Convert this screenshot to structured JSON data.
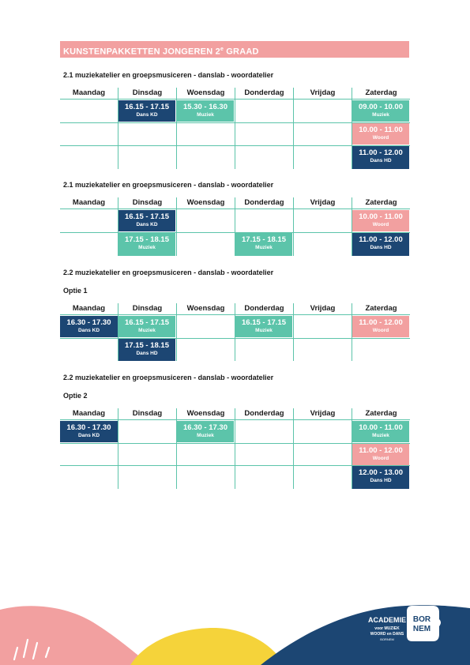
{
  "banner": {
    "title": "KUNSTENPAKKETTEN JONGEREN 2",
    "sup": "e",
    "title_end": " GRAAD"
  },
  "days": [
    "Maandag",
    "Dinsdag",
    "Woensdag",
    "Donderdag",
    "Vrijdag",
    "Zaterdag"
  ],
  "sections": [
    {
      "heading": "2.1 muziekatelier en groepsmusiceren - danslab - woordatelier",
      "cells": [
        {
          "time": "16.15 - 17.15",
          "label": "Dans KD"
        },
        {
          "time": "15.30 - 16.30",
          "label": "Muziek"
        },
        {
          "time": "09.00 - 10.00",
          "label": "Muziek"
        },
        {
          "time": "10.00 - 11.00",
          "label": "Woord"
        },
        {
          "time": "11.00 - 12.00",
          "label": "Dans HD"
        }
      ]
    },
    {
      "heading": "2.1 muziekatelier en groepsmusiceren - danslab - woordatelier",
      "cells": [
        {
          "time": "16.15 - 17.15",
          "label": "Dans KD"
        },
        {
          "time": "10.00 - 11.00",
          "label": "Woord"
        },
        {
          "time": "17.15 - 18.15",
          "label": "Muziek"
        },
        {
          "time": "17.15 - 18.15",
          "label": "Muziek"
        },
        {
          "time": "11.00 - 12.00",
          "label": "Dans HD"
        }
      ]
    },
    {
      "heading": "2.2 muziekatelier en groepsmusiceren - danslab - woordatelier",
      "subheading": "Optie 1",
      "cells": [
        {
          "time": "16.30 - 17.30",
          "label": "Dans KD"
        },
        {
          "time": "16.15 - 17.15",
          "label": "Muziek"
        },
        {
          "time": "16.15 - 17.15",
          "label": "Muziek"
        },
        {
          "time": "11.00 - 12.00",
          "label": "Woord"
        },
        {
          "time": "17.15 - 18.15",
          "label": "Dans HD"
        }
      ]
    },
    {
      "heading": "2.2 muziekatelier en groepsmusiceren - danslab - woordatelier",
      "subheading": "Optie 2",
      "cells": [
        {
          "time": "16.30 - 17.30",
          "label": "Dans KD"
        },
        {
          "time": "16.30 - 17.30",
          "label": "Muziek"
        },
        {
          "time": "10.00 - 11.00",
          "label": "Muziek"
        },
        {
          "time": "11.00 - 12.00",
          "label": "Woord"
        },
        {
          "time": "12.00 - 13.00",
          "label": "Dans HD"
        }
      ]
    }
  ],
  "logos": {
    "academie": {
      "line1": "ACADEMIE",
      "line2": "voor MUZIEK",
      "line3": "WOORD en DANS",
      "line4": "BORNEM"
    },
    "bornem": {
      "line1": "BOR",
      "line2": "NEM"
    }
  },
  "colors": {
    "navy": "#1c4673",
    "teal": "#5cc4aa",
    "pink": "#f2a0a0",
    "yellow": "#f5d33a"
  }
}
